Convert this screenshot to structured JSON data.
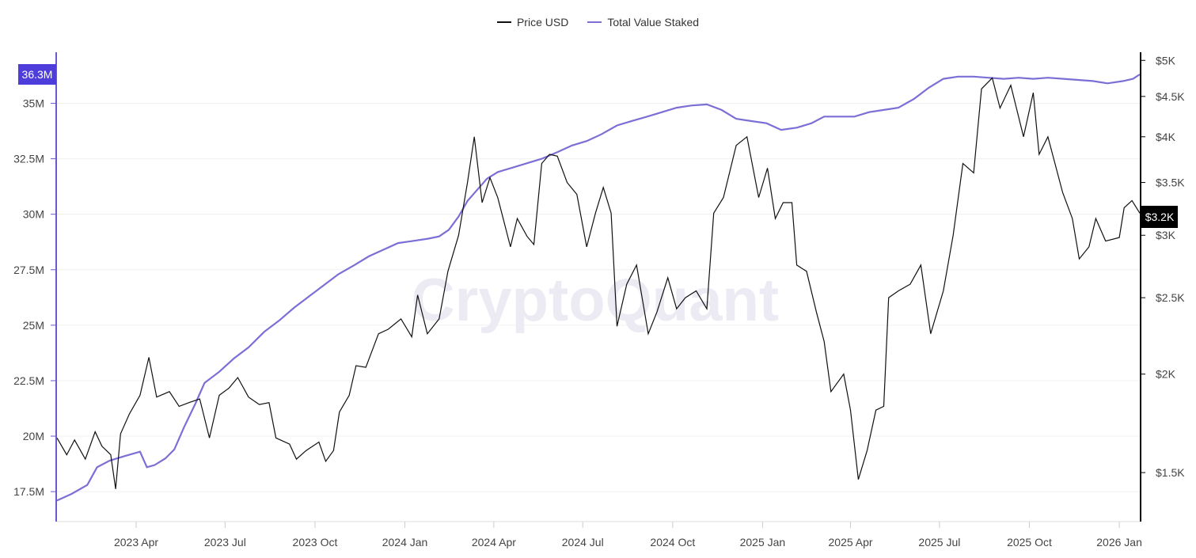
{
  "legend": {
    "price_label": "Price USD",
    "tvs_label": "Total Value Staked"
  },
  "colors": {
    "price": "#111111",
    "tvs": "#7b6fd6",
    "left_axis": "#6a5acd",
    "badge_left": "#4f3ddb",
    "badge_right": "#000000",
    "grid": "#f0f0f0"
  },
  "watermark": "CryptoQuant",
  "badges": {
    "left": "36.3M",
    "right": "$3.2K"
  },
  "chart_data": {
    "type": "line",
    "x_tick_labels": [
      "2023 Apr",
      "2023 Jul",
      "2023 Oct",
      "2024 Jan",
      "2024 Apr",
      "2024 Jul",
      "2024 Oct",
      "2025 Jan",
      "2025 Apr",
      "2025 Jul",
      "2025 Oct",
      "2026 Jan"
    ],
    "x_tick_dates": [
      "2023-04-01",
      "2023-07-01",
      "2023-10-01",
      "2024-01-01",
      "2024-04-01",
      "2024-07-01",
      "2024-10-01",
      "2025-01-01",
      "2025-04-01",
      "2025-07-01",
      "2025-10-01",
      "2026-01-01"
    ],
    "x_range": [
      "2023-01-10",
      "2026-01-22"
    ],
    "left_axis": {
      "label": "",
      "ticks": [
        17.5,
        20,
        22.5,
        25,
        27.5,
        30,
        32.5,
        35
      ],
      "tick_labels": [
        "17.5M",
        "20M",
        "22.5M",
        "25M",
        "27.5M",
        "30M",
        "32.5M",
        "35M"
      ],
      "range": [
        16.15,
        37.3
      ]
    },
    "right_axis": {
      "label": "",
      "scale": "log",
      "ticks": [
        1500,
        2000,
        2500,
        3000,
        3500,
        4000,
        4500,
        5000
      ],
      "tick_labels": [
        "$1.5K",
        "$2K",
        "$2.5K",
        "$3K",
        "$3.5K",
        "$4K",
        "$4.5K",
        "$5K"
      ],
      "range": [
        1300,
        5120
      ]
    },
    "grid": true,
    "legend_position": "top-center",
    "series": [
      {
        "name": "Total Value Staked",
        "axis": "left",
        "points": [
          [
            "2023-01-10",
            17.1
          ],
          [
            "2023-01-25",
            17.4
          ],
          [
            "2023-02-10",
            17.8
          ],
          [
            "2023-02-20",
            18.6
          ],
          [
            "2023-03-05",
            18.9
          ],
          [
            "2023-03-20",
            19.1
          ],
          [
            "2023-04-05",
            19.3
          ],
          [
            "2023-04-12",
            18.6
          ],
          [
            "2023-04-20",
            18.7
          ],
          [
            "2023-05-01",
            19.0
          ],
          [
            "2023-05-10",
            19.4
          ],
          [
            "2023-05-20",
            20.4
          ],
          [
            "2023-06-01",
            21.5
          ],
          [
            "2023-06-10",
            22.4
          ],
          [
            "2023-06-25",
            22.9
          ],
          [
            "2023-07-10",
            23.5
          ],
          [
            "2023-07-25",
            24.0
          ],
          [
            "2023-08-10",
            24.7
          ],
          [
            "2023-08-25",
            25.2
          ],
          [
            "2023-09-10",
            25.8
          ],
          [
            "2023-09-25",
            26.3
          ],
          [
            "2023-10-10",
            26.8
          ],
          [
            "2023-10-25",
            27.3
          ],
          [
            "2023-11-10",
            27.7
          ],
          [
            "2023-11-25",
            28.1
          ],
          [
            "2023-12-10",
            28.4
          ],
          [
            "2023-12-25",
            28.7
          ],
          [
            "2024-01-10",
            28.8
          ],
          [
            "2024-01-25",
            28.9
          ],
          [
            "2024-02-05",
            29.0
          ],
          [
            "2024-02-15",
            29.3
          ],
          [
            "2024-02-25",
            29.9
          ],
          [
            "2024-03-05",
            30.6
          ],
          [
            "2024-03-15",
            31.1
          ],
          [
            "2024-03-25",
            31.6
          ],
          [
            "2024-04-05",
            31.9
          ],
          [
            "2024-04-20",
            32.1
          ],
          [
            "2024-05-05",
            32.3
          ],
          [
            "2024-05-20",
            32.5
          ],
          [
            "2024-06-05",
            32.8
          ],
          [
            "2024-06-20",
            33.1
          ],
          [
            "2024-07-05",
            33.3
          ],
          [
            "2024-07-20",
            33.6
          ],
          [
            "2024-08-05",
            34.0
          ],
          [
            "2024-08-20",
            34.2
          ],
          [
            "2024-09-05",
            34.4
          ],
          [
            "2024-09-20",
            34.6
          ],
          [
            "2024-10-05",
            34.8
          ],
          [
            "2024-10-20",
            34.9
          ],
          [
            "2024-11-05",
            34.95
          ],
          [
            "2024-11-20",
            34.7
          ],
          [
            "2024-12-05",
            34.3
          ],
          [
            "2024-12-20",
            34.2
          ],
          [
            "2025-01-05",
            34.1
          ],
          [
            "2025-01-20",
            33.8
          ],
          [
            "2025-02-05",
            33.9
          ],
          [
            "2025-02-20",
            34.1
          ],
          [
            "2025-03-05",
            34.4
          ],
          [
            "2025-03-20",
            34.4
          ],
          [
            "2025-04-05",
            34.4
          ],
          [
            "2025-04-20",
            34.6
          ],
          [
            "2025-05-05",
            34.7
          ],
          [
            "2025-05-20",
            34.8
          ],
          [
            "2025-06-05",
            35.2
          ],
          [
            "2025-06-20",
            35.7
          ],
          [
            "2025-07-05",
            36.1
          ],
          [
            "2025-07-20",
            36.2
          ],
          [
            "2025-08-05",
            36.2
          ],
          [
            "2025-08-20",
            36.15
          ],
          [
            "2025-09-05",
            36.1
          ],
          [
            "2025-09-20",
            36.15
          ],
          [
            "2025-10-05",
            36.1
          ],
          [
            "2025-10-20",
            36.15
          ],
          [
            "2025-11-05",
            36.1
          ],
          [
            "2025-11-20",
            36.05
          ],
          [
            "2025-12-05",
            36.0
          ],
          [
            "2025-12-20",
            35.9
          ],
          [
            "2026-01-05",
            36.0
          ],
          [
            "2026-01-15",
            36.1
          ],
          [
            "2026-01-22",
            36.3
          ]
        ]
      },
      {
        "name": "Price USD",
        "axis": "right",
        "points": [
          [
            "2023-01-10",
            1660
          ],
          [
            "2023-01-20",
            1580
          ],
          [
            "2023-01-28",
            1650
          ],
          [
            "2023-02-08",
            1560
          ],
          [
            "2023-02-18",
            1690
          ],
          [
            "2023-02-25",
            1620
          ],
          [
            "2023-03-06",
            1580
          ],
          [
            "2023-03-11",
            1430
          ],
          [
            "2023-03-16",
            1680
          ],
          [
            "2023-03-25",
            1780
          ],
          [
            "2023-04-05",
            1880
          ],
          [
            "2023-04-14",
            2100
          ],
          [
            "2023-04-22",
            1870
          ],
          [
            "2023-05-05",
            1900
          ],
          [
            "2023-05-15",
            1820
          ],
          [
            "2023-05-25",
            1840
          ],
          [
            "2023-06-05",
            1860
          ],
          [
            "2023-06-15",
            1660
          ],
          [
            "2023-06-25",
            1880
          ],
          [
            "2023-07-05",
            1920
          ],
          [
            "2023-07-14",
            1980
          ],
          [
            "2023-07-25",
            1870
          ],
          [
            "2023-08-05",
            1830
          ],
          [
            "2023-08-15",
            1840
          ],
          [
            "2023-08-22",
            1660
          ],
          [
            "2023-09-05",
            1630
          ],
          [
            "2023-09-12",
            1560
          ],
          [
            "2023-09-22",
            1600
          ],
          [
            "2023-10-05",
            1640
          ],
          [
            "2023-10-12",
            1550
          ],
          [
            "2023-10-20",
            1600
          ],
          [
            "2023-10-26",
            1790
          ],
          [
            "2023-11-05",
            1880
          ],
          [
            "2023-11-12",
            2050
          ],
          [
            "2023-11-22",
            2040
          ],
          [
            "2023-12-05",
            2250
          ],
          [
            "2023-12-15",
            2280
          ],
          [
            "2023-12-28",
            2350
          ],
          [
            "2024-01-08",
            2230
          ],
          [
            "2024-01-14",
            2520
          ],
          [
            "2024-01-24",
            2250
          ],
          [
            "2024-02-05",
            2350
          ],
          [
            "2024-02-14",
            2700
          ],
          [
            "2024-02-25",
            3000
          ],
          [
            "2024-03-05",
            3500
          ],
          [
            "2024-03-12",
            4000
          ],
          [
            "2024-03-20",
            3300
          ],
          [
            "2024-03-28",
            3550
          ],
          [
            "2024-04-05",
            3350
          ],
          [
            "2024-04-12",
            3100
          ],
          [
            "2024-04-18",
            2900
          ],
          [
            "2024-04-25",
            3150
          ],
          [
            "2024-05-05",
            2990
          ],
          [
            "2024-05-12",
            2920
          ],
          [
            "2024-05-20",
            3700
          ],
          [
            "2024-05-28",
            3800
          ],
          [
            "2024-06-05",
            3780
          ],
          [
            "2024-06-15",
            3500
          ],
          [
            "2024-06-25",
            3380
          ],
          [
            "2024-07-05",
            2900
          ],
          [
            "2024-07-14",
            3200
          ],
          [
            "2024-07-22",
            3450
          ],
          [
            "2024-07-30",
            3200
          ],
          [
            "2024-08-05",
            2300
          ],
          [
            "2024-08-15",
            2600
          ],
          [
            "2024-08-25",
            2750
          ],
          [
            "2024-09-06",
            2250
          ],
          [
            "2024-09-15",
            2400
          ],
          [
            "2024-09-26",
            2650
          ],
          [
            "2024-10-05",
            2420
          ],
          [
            "2024-10-14",
            2500
          ],
          [
            "2024-10-25",
            2550
          ],
          [
            "2024-11-05",
            2420
          ],
          [
            "2024-11-12",
            3200
          ],
          [
            "2024-11-22",
            3350
          ],
          [
            "2024-12-05",
            3900
          ],
          [
            "2024-12-16",
            4000
          ],
          [
            "2024-12-28",
            3350
          ],
          [
            "2025-01-06",
            3650
          ],
          [
            "2025-01-14",
            3150
          ],
          [
            "2025-01-22",
            3300
          ],
          [
            "2025-01-31",
            3300
          ],
          [
            "2025-02-05",
            2750
          ],
          [
            "2025-02-15",
            2700
          ],
          [
            "2025-02-25",
            2400
          ],
          [
            "2025-03-05",
            2200
          ],
          [
            "2025-03-12",
            1900
          ],
          [
            "2025-03-25",
            2000
          ],
          [
            "2025-04-01",
            1800
          ],
          [
            "2025-04-09",
            1470
          ],
          [
            "2025-04-18",
            1600
          ],
          [
            "2025-04-27",
            1800
          ],
          [
            "2025-05-05",
            1820
          ],
          [
            "2025-05-10",
            2500
          ],
          [
            "2025-05-20",
            2550
          ],
          [
            "2025-06-01",
            2600
          ],
          [
            "2025-06-12",
            2750
          ],
          [
            "2025-06-22",
            2250
          ],
          [
            "2025-07-05",
            2550
          ],
          [
            "2025-07-15",
            3000
          ],
          [
            "2025-07-25",
            3700
          ],
          [
            "2025-08-05",
            3600
          ],
          [
            "2025-08-13",
            4600
          ],
          [
            "2025-08-24",
            4750
          ],
          [
            "2025-09-01",
            4350
          ],
          [
            "2025-09-12",
            4650
          ],
          [
            "2025-09-25",
            4000
          ],
          [
            "2025-10-05",
            4550
          ],
          [
            "2025-10-11",
            3800
          ],
          [
            "2025-10-20",
            4000
          ],
          [
            "2025-11-04",
            3400
          ],
          [
            "2025-11-14",
            3150
          ],
          [
            "2025-11-21",
            2800
          ],
          [
            "2025-12-01",
            2900
          ],
          [
            "2025-12-08",
            3150
          ],
          [
            "2025-12-18",
            2950
          ],
          [
            "2026-01-01",
            2980
          ],
          [
            "2026-01-06",
            3250
          ],
          [
            "2026-01-14",
            3320
          ],
          [
            "2026-01-22",
            3200
          ]
        ]
      }
    ]
  }
}
